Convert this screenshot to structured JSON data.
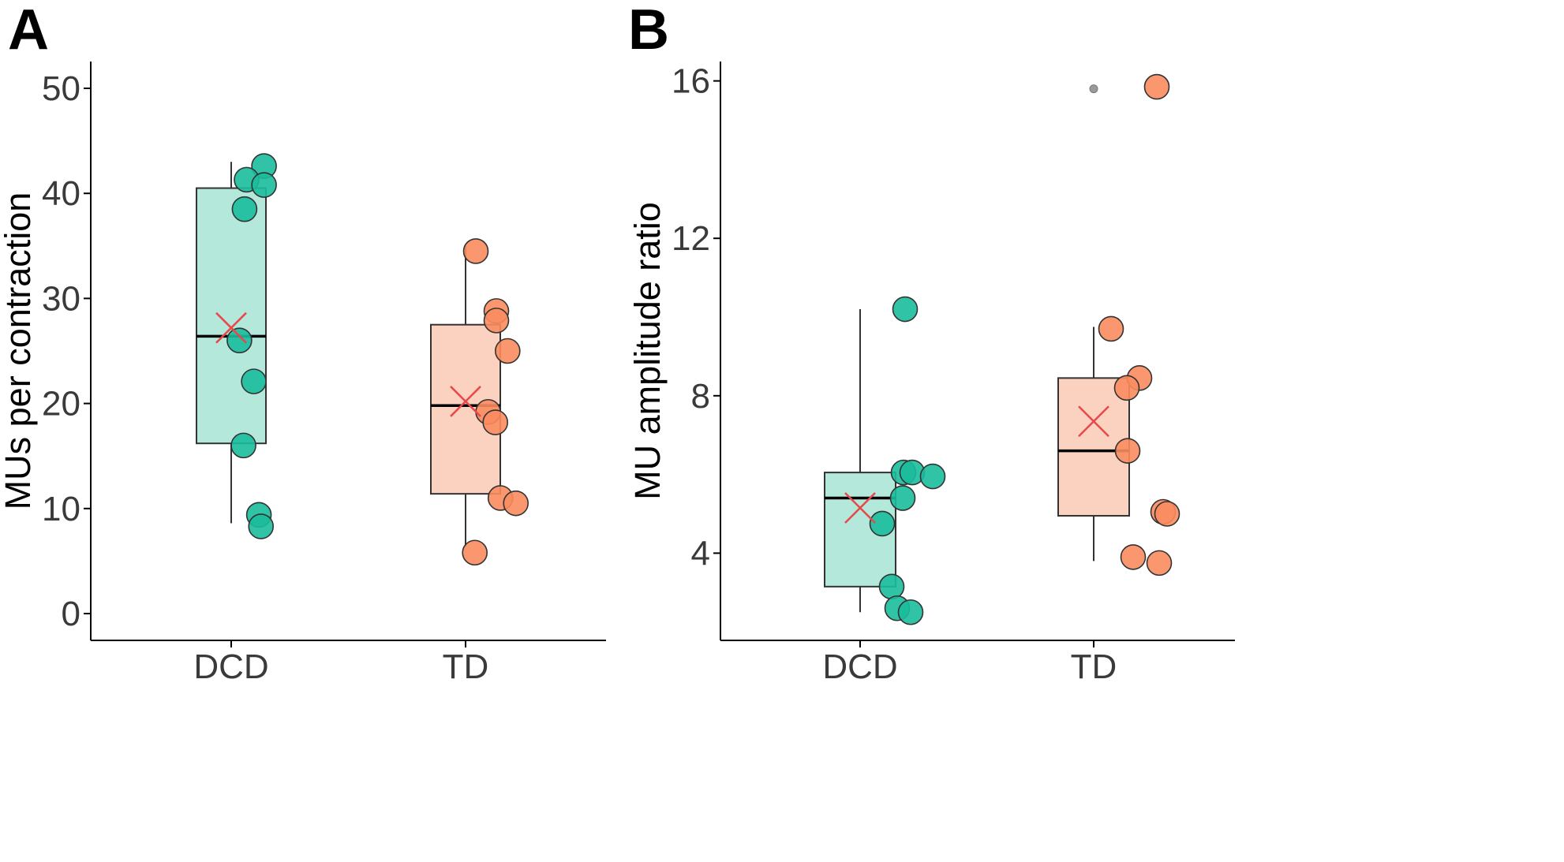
{
  "figure": {
    "colors": {
      "dcd_fill": "#1ABC9C",
      "dcd_box": "#B4E8DA",
      "td_fill": "#FA8C5F",
      "td_box": "#FBD1C0",
      "mean_marker": "#E8484A",
      "outlier": "#9A9A9A",
      "outline": "#333333"
    }
  },
  "chart_data": [
    {
      "panel_label": "A",
      "type": "box+scatter",
      "title": "",
      "xlabel": "",
      "ylabel": "MUs per contraction",
      "categories": [
        "DCD",
        "TD"
      ],
      "ylim": [
        -2.5,
        52.5
      ],
      "yticks": [
        0,
        10,
        20,
        30,
        40,
        50
      ],
      "ytick_labels": [
        "0",
        "10",
        "20",
        "30",
        "40",
        "50"
      ],
      "grid": false,
      "boxes": [
        {
          "category": "DCD",
          "q1": 16.2,
          "median": 26.4,
          "q3": 40.5,
          "whisker_low": 8.6,
          "whisker_high": 43.0,
          "mean": 27.2,
          "outliers": []
        },
        {
          "category": "TD",
          "q1": 11.4,
          "median": 19.8,
          "q3": 27.5,
          "whisker_low": 6.4,
          "whisker_high": 35.0,
          "mean": 20.2,
          "outliers": []
        }
      ],
      "points": [
        {
          "category": "DCD",
          "jitter": 0.32,
          "value": 42.6
        },
        {
          "category": "DCD",
          "jitter": 0.15,
          "value": 41.3
        },
        {
          "category": "DCD",
          "jitter": 0.32,
          "value": 40.8
        },
        {
          "category": "DCD",
          "jitter": 0.13,
          "value": 38.5
        },
        {
          "category": "DCD",
          "jitter": 0.08,
          "value": 26.0
        },
        {
          "category": "DCD",
          "jitter": 0.22,
          "value": 22.1
        },
        {
          "category": "DCD",
          "jitter": 0.12,
          "value": 16.0
        },
        {
          "category": "DCD",
          "jitter": 0.27,
          "value": 9.4
        },
        {
          "category": "DCD",
          "jitter": 0.29,
          "value": 8.3
        },
        {
          "category": "TD",
          "jitter": 0.1,
          "value": 34.5
        },
        {
          "category": "TD",
          "jitter": 0.3,
          "value": 28.8
        },
        {
          "category": "TD",
          "jitter": 0.3,
          "value": 27.9
        },
        {
          "category": "TD",
          "jitter": 0.41,
          "value": 25.0
        },
        {
          "category": "TD",
          "jitter": 0.22,
          "value": 19.2
        },
        {
          "category": "TD",
          "jitter": 0.29,
          "value": 18.2
        },
        {
          "category": "TD",
          "jitter": 0.34,
          "value": 11.0
        },
        {
          "category": "TD",
          "jitter": 0.49,
          "value": 10.5
        },
        {
          "category": "TD",
          "jitter": 0.09,
          "value": 5.8
        }
      ]
    },
    {
      "panel_label": "B",
      "type": "box+scatter",
      "title": "",
      "xlabel": "",
      "ylabel": "MU amplitude ratio",
      "categories": [
        "DCD",
        "TD"
      ],
      "ylim": [
        2.2,
        16.5
      ],
      "yticks": [
        4,
        8,
        12,
        16
      ],
      "ytick_labels": [
        "4",
        "8",
        "12",
        "16"
      ],
      "grid": false,
      "boxes": [
        {
          "category": "DCD",
          "q1": 3.15,
          "median": 5.4,
          "q3": 6.05,
          "whisker_low": 2.5,
          "whisker_high": 10.2,
          "mean": 5.15,
          "outliers": []
        },
        {
          "category": "TD",
          "q1": 4.95,
          "median": 6.6,
          "q3": 8.45,
          "whisker_low": 3.8,
          "whisker_high": 9.75,
          "mean": 7.35,
          "outliers": [
            15.8
          ]
        }
      ],
      "points": [
        {
          "category": "DCD",
          "jitter": 0.57,
          "value": 10.2
        },
        {
          "category": "DCD",
          "jitter": 0.55,
          "value": 6.05
        },
        {
          "category": "DCD",
          "jitter": 0.66,
          "value": 6.05
        },
        {
          "category": "DCD",
          "jitter": 0.92,
          "value": 5.95
        },
        {
          "category": "DCD",
          "jitter": 0.54,
          "value": 5.4
        },
        {
          "category": "DCD",
          "jitter": 0.28,
          "value": 4.75
        },
        {
          "category": "DCD",
          "jitter": 0.4,
          "value": 3.15
        },
        {
          "category": "DCD",
          "jitter": 0.47,
          "value": 2.6
        },
        {
          "category": "DCD",
          "jitter": 0.64,
          "value": 2.5
        },
        {
          "category": "TD",
          "jitter": 0.8,
          "value": 15.85
        },
        {
          "category": "TD",
          "jitter": 0.22,
          "value": 9.7
        },
        {
          "category": "TD",
          "jitter": 0.58,
          "value": 8.45
        },
        {
          "category": "TD",
          "jitter": 0.42,
          "value": 8.2
        },
        {
          "category": "TD",
          "jitter": 0.43,
          "value": 6.6
        },
        {
          "category": "TD",
          "jitter": 0.88,
          "value": 5.05
        },
        {
          "category": "TD",
          "jitter": 0.93,
          "value": 5.0
        },
        {
          "category": "TD",
          "jitter": 0.5,
          "value": 3.9
        },
        {
          "category": "TD",
          "jitter": 0.83,
          "value": 3.75
        }
      ]
    }
  ]
}
